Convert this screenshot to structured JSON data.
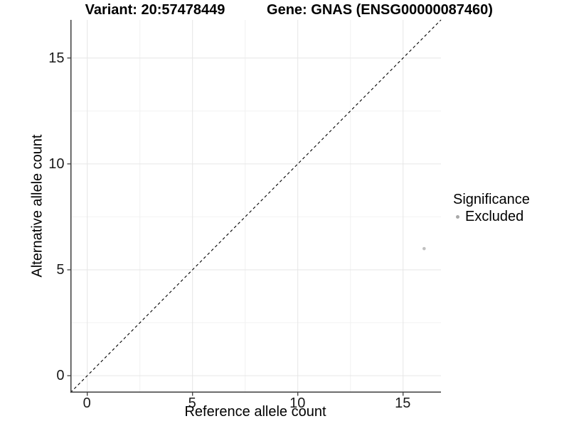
{
  "chart_data": {
    "type": "scatter",
    "titles": {
      "left": "Variant: 20:57478449",
      "right": "Gene: GNAS (ENSG00000087460)"
    },
    "xlabel": "Reference allele count",
    "ylabel": "Alternative allele count",
    "xlim": [
      -0.8,
      16.8
    ],
    "ylim": [
      -0.8,
      16.8
    ],
    "x_ticks": [
      0,
      5,
      10,
      15
    ],
    "y_ticks": [
      0,
      5,
      10,
      15
    ],
    "x_minor_ticks": [
      2.5,
      7.5,
      12.5
    ],
    "y_minor_ticks": [
      2.5,
      7.5,
      12.5
    ],
    "grid": true,
    "points": [
      {
        "x": 16,
        "y": 6,
        "series": "Excluded",
        "color": "#c0c0c0",
        "diameter": 4.6
      }
    ],
    "reference_line": {
      "slope": 1,
      "intercept": 0,
      "style": "dashed",
      "color": "#000000"
    },
    "legend": {
      "title": "Significance",
      "position": "right",
      "entries": [
        {
          "label": "Excluded",
          "color": "#a8a8a8"
        }
      ]
    },
    "colors": {
      "background": "#ffffff",
      "grid_major": "#e6e6e6",
      "grid_minor": "#f2f2f2",
      "axis_line": "#3e3e3e",
      "tick_mark": "#3e3e3e",
      "tick_text": "#1a1a1a"
    }
  }
}
